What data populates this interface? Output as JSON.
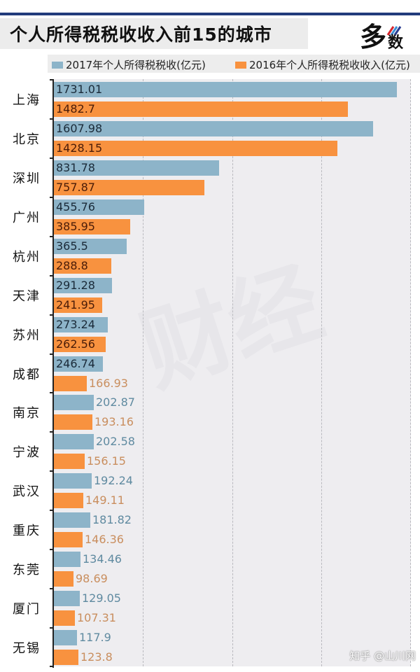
{
  "header": {
    "title": "个人所得税税收收入前15的城市",
    "logo_text": "多数"
  },
  "legend": {
    "items": [
      {
        "label": "2017年个人所得税税收(亿元)",
        "color": "#8db4c9"
      },
      {
        "label": "2016年个人所得税税收收入(亿元)",
        "color": "#f8923f"
      }
    ]
  },
  "watermark": {
    "center": "财经",
    "corner": "知乎 @山川网"
  },
  "colors": {
    "series_2017": "#8db4c9",
    "series_2016": "#f8923f",
    "title_rule": "#223c7c",
    "plot_bg": "#eeedf0"
  },
  "chart_data": {
    "type": "bar",
    "orientation": "horizontal",
    "title": "个人所得税税收收入前15的城市",
    "xlabel": "",
    "ylabel": "",
    "xlim": [
      0,
      1800
    ],
    "gridlines_x": [
      450,
      900,
      1350,
      1800
    ],
    "grid": true,
    "legend_position": "top",
    "categories": [
      "上海",
      "北京",
      "深圳",
      "广州",
      "杭州",
      "天津",
      "苏州",
      "成都",
      "南京",
      "宁波",
      "武汉",
      "重庆",
      "东莞",
      "厦门",
      "无锡"
    ],
    "series": [
      {
        "name": "2017年个人所得税税收(亿元)",
        "values": [
          1731.01,
          1607.98,
          831.78,
          455.76,
          365.5,
          291.28,
          273.24,
          246.74,
          202.87,
          202.58,
          192.24,
          181.82,
          134.46,
          129.05,
          117.9
        ]
      },
      {
        "name": "2016年个人所得税税收收入(亿元)",
        "values": [
          1482.7,
          1428.15,
          757.87,
          385.95,
          288.8,
          241.95,
          262.56,
          166.93,
          193.16,
          156.15,
          149.11,
          146.36,
          98.69,
          107.31,
          123.8
        ]
      }
    ],
    "value_labels": [
      [
        "1731.01",
        "1482.7"
      ],
      [
        "1607.98",
        "1428.15"
      ],
      [
        "831.78",
        "757.87"
      ],
      [
        "455.76",
        "385.95"
      ],
      [
        "365.5",
        "288.8"
      ],
      [
        "291.28",
        "241.95"
      ],
      [
        "273.24",
        "262.56"
      ],
      [
        "246.74",
        "166.93"
      ],
      [
        "202.87",
        "193.16"
      ],
      [
        "202.58",
        "156.15"
      ],
      [
        "192.24",
        "149.11"
      ],
      [
        "181.82",
        "146.36"
      ],
      [
        "134.46",
        "98.69"
      ],
      [
        "129.05",
        "107.31"
      ],
      [
        "117.9",
        "123.8"
      ]
    ]
  }
}
